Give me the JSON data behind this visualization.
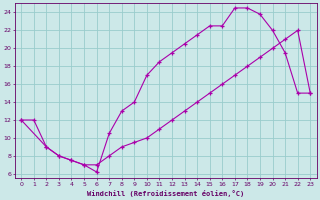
{
  "title": "",
  "xlabel": "Windchill (Refroidissement éolien,°C)",
  "ylabel": "",
  "bg_color": "#cce8e8",
  "line_color": "#aa00aa",
  "grid_color": "#99cccc",
  "axis_color": "#660066",
  "xlim": [
    -0.5,
    23.5
  ],
  "ylim": [
    5.5,
    25.0
  ],
  "xticks": [
    0,
    1,
    2,
    3,
    4,
    5,
    6,
    7,
    8,
    9,
    10,
    11,
    12,
    13,
    14,
    15,
    16,
    17,
    18,
    19,
    20,
    21,
    22,
    23
  ],
  "yticks": [
    6,
    8,
    10,
    12,
    14,
    16,
    18,
    20,
    22,
    24
  ],
  "line1_x": [
    0,
    1,
    2,
    3,
    4,
    5,
    6,
    7,
    8,
    9,
    10,
    11,
    12,
    13,
    14,
    15,
    16,
    17,
    18,
    19,
    20,
    21,
    22,
    23
  ],
  "line1_y": [
    12,
    12,
    9,
    8,
    7.5,
    7,
    6.2,
    10.5,
    13,
    14,
    17,
    18.5,
    19.5,
    20.5,
    21.5,
    22.5,
    22.5,
    24.5,
    24.5,
    23.8,
    22,
    19.5,
    15,
    15
  ],
  "line2_x": [
    0,
    2,
    3,
    4,
    5,
    6,
    7,
    8,
    9,
    10,
    11,
    12,
    13,
    14,
    15,
    16,
    17,
    18,
    19,
    20,
    21,
    22,
    23
  ],
  "line2_y": [
    12,
    9,
    8,
    7.5,
    7,
    7,
    8,
    9,
    9.5,
    10,
    11,
    12,
    13,
    14,
    15,
    16,
    17,
    18,
    19,
    20,
    21,
    22,
    15
  ]
}
